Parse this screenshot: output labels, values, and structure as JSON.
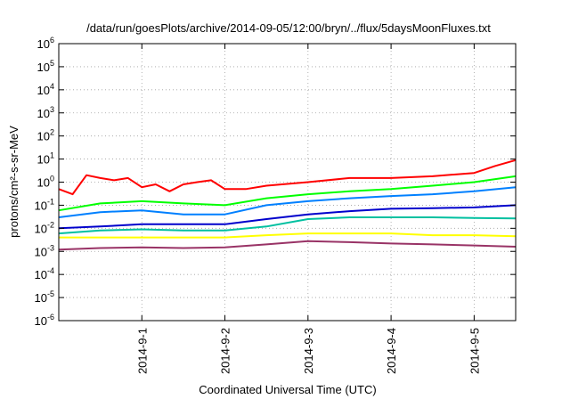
{
  "chart_data": {
    "type": "line",
    "title": "/data/run/goesPlots/archive/2014-09-05/12:00/bryn/../flux/5daysMoonFluxes.txt",
    "xlabel": "Coordinated Universal Time (UTC)",
    "ylabel": "protons/cm²-s-sr-MeV",
    "y_scale": "log",
    "xlim": [
      "2014-08-31 00:00",
      "2014-09-05 12:00"
    ],
    "ylim_exponents": [
      -6,
      6
    ],
    "y_tick_labels": [
      "10-6",
      "10-5",
      "10-4",
      "10-3",
      "10-2",
      "10-1",
      "100",
      "101",
      "102",
      "103",
      "104",
      "105",
      "106"
    ],
    "x_ticks": [
      {
        "t": "2014-09-01 00:00",
        "label": "2014-9-1"
      },
      {
        "t": "2014-09-02 00:00",
        "label": "2014-9-2"
      },
      {
        "t": "2014-09-03 00:00",
        "label": "2014-9-3"
      },
      {
        "t": "2014-09-04 00:00",
        "label": "2014-9-4"
      },
      {
        "t": "2014-09-05 00:00",
        "label": "2014-9-5"
      }
    ],
    "grid": true,
    "legend": "none",
    "series": [
      {
        "color": "#ff0000",
        "x": [
          "2014-08-31 00:00",
          "2014-08-31 04:00",
          "2014-08-31 08:00",
          "2014-08-31 12:00",
          "2014-08-31 16:00",
          "2014-08-31 20:00",
          "2014-09-01 00:00",
          "2014-09-01 04:00",
          "2014-09-01 08:00",
          "2014-09-01 12:00",
          "2014-09-01 16:00",
          "2014-09-01 20:00",
          "2014-09-02 00:00",
          "2014-09-02 06:00",
          "2014-09-02 12:00",
          "2014-09-03 00:00",
          "2014-09-03 12:00",
          "2014-09-04 00:00",
          "2014-09-04 12:00",
          "2014-09-05 00:00",
          "2014-09-05 06:00",
          "2014-09-05 12:00"
        ],
        "y": [
          0.5,
          0.3,
          2.0,
          1.5,
          1.2,
          1.5,
          0.6,
          0.8,
          0.4,
          0.8,
          1.0,
          1.2,
          0.5,
          0.5,
          0.7,
          1.0,
          1.5,
          1.5,
          1.8,
          2.5,
          5,
          9
        ]
      },
      {
        "color": "#00ff00",
        "x": [
          "2014-08-31 00:00",
          "2014-08-31 12:00",
          "2014-09-01 00:00",
          "2014-09-01 12:00",
          "2014-09-02 00:00",
          "2014-09-02 12:00",
          "2014-09-03 00:00",
          "2014-09-03 12:00",
          "2014-09-04 00:00",
          "2014-09-04 12:00",
          "2014-09-05 00:00",
          "2014-09-05 12:00"
        ],
        "y": [
          0.06,
          0.12,
          0.15,
          0.12,
          0.1,
          0.2,
          0.3,
          0.4,
          0.5,
          0.7,
          1.0,
          1.8
        ]
      },
      {
        "color": "#0080ff",
        "x": [
          "2014-08-31 00:00",
          "2014-08-31 12:00",
          "2014-09-01 00:00",
          "2014-09-01 12:00",
          "2014-09-02 00:00",
          "2014-09-02 12:00",
          "2014-09-03 00:00",
          "2014-09-03 12:00",
          "2014-09-04 00:00",
          "2014-09-04 12:00",
          "2014-09-05 00:00",
          "2014-09-05 12:00"
        ],
        "y": [
          0.03,
          0.05,
          0.06,
          0.04,
          0.04,
          0.1,
          0.15,
          0.2,
          0.25,
          0.3,
          0.4,
          0.6
        ]
      },
      {
        "color": "#0000cc",
        "x": [
          "2014-08-31 00:00",
          "2014-08-31 12:00",
          "2014-09-01 00:00",
          "2014-09-01 12:00",
          "2014-09-02 00:00",
          "2014-09-02 12:00",
          "2014-09-03 00:00",
          "2014-09-03 12:00",
          "2014-09-04 00:00",
          "2014-09-04 12:00",
          "2014-09-05 00:00",
          "2014-09-05 12:00"
        ],
        "y": [
          0.01,
          0.012,
          0.015,
          0.015,
          0.015,
          0.025,
          0.04,
          0.055,
          0.07,
          0.075,
          0.08,
          0.1
        ]
      },
      {
        "color": "#00c0a0",
        "x": [
          "2014-08-31 00:00",
          "2014-08-31 12:00",
          "2014-09-01 00:00",
          "2014-09-01 12:00",
          "2014-09-02 00:00",
          "2014-09-02 12:00",
          "2014-09-03 00:00",
          "2014-09-03 12:00",
          "2014-09-04 00:00",
          "2014-09-04 12:00",
          "2014-09-05 00:00",
          "2014-09-05 12:00"
        ],
        "y": [
          0.006,
          0.008,
          0.009,
          0.008,
          0.008,
          0.012,
          0.025,
          0.03,
          0.03,
          0.03,
          0.028,
          0.027
        ]
      },
      {
        "color": "#ffff00",
        "x": [
          "2014-08-31 00:00",
          "2014-08-31 12:00",
          "2014-09-01 00:00",
          "2014-09-01 12:00",
          "2014-09-02 00:00",
          "2014-09-02 12:00",
          "2014-09-03 00:00",
          "2014-09-03 12:00",
          "2014-09-04 00:00",
          "2014-09-04 12:00",
          "2014-09-05 00:00",
          "2014-09-05 12:00"
        ],
        "y": [
          0.004,
          0.004,
          0.004,
          0.004,
          0.004,
          0.005,
          0.006,
          0.006,
          0.006,
          0.005,
          0.005,
          0.0045
        ]
      },
      {
        "color": "#993366",
        "x": [
          "2014-08-31 00:00",
          "2014-08-31 12:00",
          "2014-09-01 00:00",
          "2014-09-01 12:00",
          "2014-09-02 00:00",
          "2014-09-02 12:00",
          "2014-09-03 00:00",
          "2014-09-03 12:00",
          "2014-09-04 00:00",
          "2014-09-04 12:00",
          "2014-09-05 00:00",
          "2014-09-05 12:00"
        ],
        "y": [
          0.0012,
          0.0014,
          0.0015,
          0.0014,
          0.0015,
          0.002,
          0.0028,
          0.0025,
          0.0022,
          0.002,
          0.0018,
          0.0016
        ]
      }
    ]
  }
}
